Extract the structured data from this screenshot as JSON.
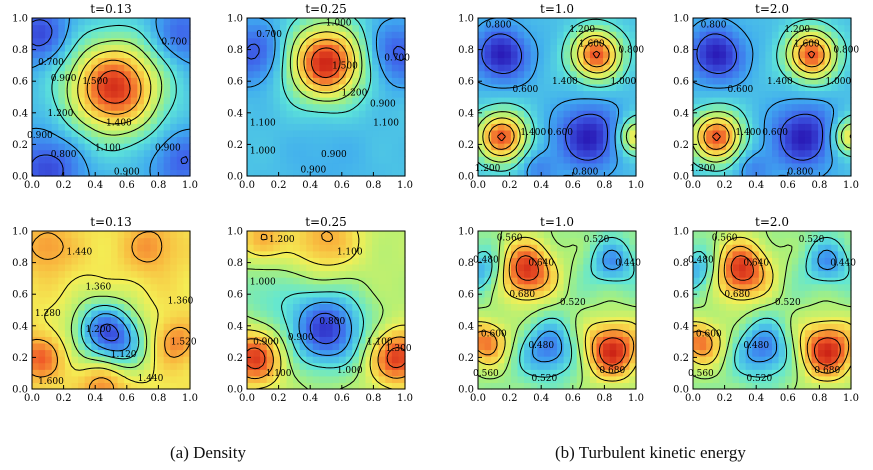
{
  "captions": {
    "a": "(a) Density",
    "b": "(b) Turbulent kinetic energy"
  },
  "colormap": [
    "#2a1cb8",
    "#3f62ea",
    "#3fa9f0",
    "#5ee6d8",
    "#aaf07a",
    "#f4ef55",
    "#f9b23c",
    "#f05a28",
    "#c81e14"
  ],
  "chart_data": [
    {
      "type": "contour",
      "group": "(a) Density",
      "title": "t=0.13",
      "xlim": [
        0,
        1
      ],
      "ylim": [
        0,
        1
      ],
      "xticks": [
        "0.0",
        "0.2",
        "0.4",
        "0.6",
        "0.8",
        "1.0"
      ],
      "yticks": [
        "0.0",
        "0.2",
        "0.4",
        "0.6",
        "0.8",
        "1.0"
      ],
      "vmin": 0.6,
      "vmax": 1.85,
      "bumps": [
        [
          0.52,
          0.56,
          0.85,
          0.2
        ],
        [
          0.05,
          0.9,
          -0.25,
          0.13
        ],
        [
          0.95,
          0.9,
          -0.2,
          0.13
        ],
        [
          0.1,
          0.05,
          -0.25,
          0.15
        ],
        [
          0.95,
          0.1,
          -0.2,
          0.13
        ]
      ],
      "base": 0.95,
      "contour_labels": [
        {
          "text": "0.700",
          "x": 0.12,
          "y": 0.72
        },
        {
          "text": "0.700",
          "x": 0.9,
          "y": 0.85
        },
        {
          "text": "0.900",
          "x": 0.2,
          "y": 0.62
        },
        {
          "text": "1.500",
          "x": 0.4,
          "y": 0.6
        },
        {
          "text": "1.200",
          "x": 0.18,
          "y": 0.4
        },
        {
          "text": "1.400",
          "x": 0.55,
          "y": 0.34
        },
        {
          "text": "1.100",
          "x": 0.48,
          "y": 0.18
        },
        {
          "text": "0.800",
          "x": 0.2,
          "y": 0.14
        },
        {
          "text": "0.900",
          "x": 0.86,
          "y": 0.18
        },
        {
          "text": "0.900",
          "x": 0.05,
          "y": 0.26
        },
        {
          "text": "0.900",
          "x": 0.6,
          "y": 0.03
        }
      ]
    },
    {
      "type": "contour",
      "group": "(a) Density",
      "title": "t=0.25",
      "xlim": [
        0,
        1
      ],
      "ylim": [
        0,
        1
      ],
      "xticks": [
        "0.0",
        "0.2",
        "0.4",
        "0.6",
        "0.8",
        "1.0"
      ],
      "yticks": [
        "0.0",
        "0.2",
        "0.4",
        "0.6",
        "0.8",
        "1.0"
      ],
      "vmin": 0.6,
      "vmax": 1.85,
      "bumps": [
        [
          0.5,
          0.72,
          0.85,
          0.16
        ],
        [
          0.05,
          0.78,
          -0.25,
          0.14
        ],
        [
          0.95,
          0.78,
          -0.25,
          0.14
        ],
        [
          0.5,
          0.1,
          -0.05,
          0.2
        ]
      ],
      "base": 0.98,
      "contour_labels": [
        {
          "text": "0.700",
          "x": 0.14,
          "y": 0.9
        },
        {
          "text": "0.700",
          "x": 0.95,
          "y": 0.75
        },
        {
          "text": "1.000",
          "x": 0.58,
          "y": 0.97
        },
        {
          "text": "1.500",
          "x": 0.62,
          "y": 0.7
        },
        {
          "text": "1.200",
          "x": 0.68,
          "y": 0.53
        },
        {
          "text": "0.900",
          "x": 0.86,
          "y": 0.46
        },
        {
          "text": "1.100",
          "x": 0.1,
          "y": 0.34
        },
        {
          "text": "1.100",
          "x": 0.88,
          "y": 0.34
        },
        {
          "text": "1.000",
          "x": 0.1,
          "y": 0.16
        },
        {
          "text": "0.900",
          "x": 0.55,
          "y": 0.14
        },
        {
          "text": "0.900",
          "x": 0.42,
          "y": 0.04
        }
      ]
    },
    {
      "type": "contour",
      "group": "(a) Density",
      "title": "t=1.0",
      "xlim": [
        0,
        1
      ],
      "ylim": [
        0,
        1
      ],
      "xticks": [
        "0.0",
        "0.2",
        "0.4",
        "0.6",
        "0.8",
        "1.0"
      ],
      "yticks": [
        "0.0",
        "0.2",
        "0.4",
        "0.6",
        "0.8",
        "1.0"
      ],
      "vmin": 0.45,
      "vmax": 1.8,
      "bumps": [
        [
          0.15,
          0.25,
          0.8,
          0.11
        ],
        [
          0.75,
          0.77,
          0.8,
          0.11
        ],
        [
          0.15,
          0.77,
          -0.4,
          0.12
        ],
        [
          0.7,
          0.25,
          -0.4,
          0.14
        ],
        [
          1.0,
          0.25,
          0.5,
          0.08
        ],
        [
          0.38,
          0.05,
          -0.15,
          0.08
        ]
      ],
      "base": 0.85,
      "contour_labels": [
        {
          "text": "0.800",
          "x": 0.13,
          "y": 0.96
        },
        {
          "text": "1.200",
          "x": 0.66,
          "y": 0.93
        },
        {
          "text": "1.600",
          "x": 0.72,
          "y": 0.84
        },
        {
          "text": "0.800",
          "x": 0.97,
          "y": 0.8
        },
        {
          "text": "1.400",
          "x": 0.55,
          "y": 0.6
        },
        {
          "text": "1.000",
          "x": 0.92,
          "y": 0.6
        },
        {
          "text": "0.600",
          "x": 0.3,
          "y": 0.55
        },
        {
          "text": "1.400",
          "x": 0.35,
          "y": 0.28
        },
        {
          "text": "0.600",
          "x": 0.52,
          "y": 0.28
        },
        {
          "text": "1.200",
          "x": 0.06,
          "y": 0.05
        },
        {
          "text": "0.800",
          "x": 0.68,
          "y": 0.03
        }
      ]
    },
    {
      "type": "contour",
      "group": "(a) Density",
      "title": "t=2.0",
      "xlim": [
        0,
        1
      ],
      "ylim": [
        0,
        1
      ],
      "xticks": [
        "0.0",
        "0.2",
        "0.4",
        "0.6",
        "0.8",
        "1.0"
      ],
      "yticks": [
        "0.0",
        "0.2",
        "0.4",
        "0.6",
        "0.8",
        "1.0"
      ],
      "vmin": 0.45,
      "vmax": 1.8,
      "bumps": [
        [
          0.15,
          0.25,
          0.8,
          0.11
        ],
        [
          0.75,
          0.77,
          0.8,
          0.11
        ],
        [
          0.15,
          0.77,
          -0.4,
          0.12
        ],
        [
          0.7,
          0.25,
          -0.4,
          0.14
        ],
        [
          1.0,
          0.25,
          0.5,
          0.08
        ],
        [
          0.38,
          0.05,
          -0.15,
          0.08
        ]
      ],
      "base": 0.85,
      "contour_labels": [
        {
          "text": "0.800",
          "x": 0.13,
          "y": 0.96
        },
        {
          "text": "1.200",
          "x": 0.66,
          "y": 0.93
        },
        {
          "text": "1.600",
          "x": 0.72,
          "y": 0.84
        },
        {
          "text": "0.800",
          "x": 0.97,
          "y": 0.8
        },
        {
          "text": "1.400",
          "x": 0.55,
          "y": 0.6
        },
        {
          "text": "1.000",
          "x": 0.92,
          "y": 0.6
        },
        {
          "text": "0.600",
          "x": 0.3,
          "y": 0.55
        },
        {
          "text": "1.400",
          "x": 0.35,
          "y": 0.28
        },
        {
          "text": "0.600",
          "x": 0.52,
          "y": 0.28
        },
        {
          "text": "1.200",
          "x": 0.06,
          "y": 0.05
        },
        {
          "text": "0.800",
          "x": 0.68,
          "y": 0.03
        }
      ]
    },
    {
      "type": "contour",
      "group": "(b) Turbulent kinetic energy",
      "title": "t=0.13",
      "xlim": [
        0,
        1
      ],
      "ylim": [
        0,
        1
      ],
      "xticks": [
        "0.0",
        "0.2",
        "0.4",
        "0.6",
        "0.8",
        "1.0"
      ],
      "yticks": [
        "0.0",
        "0.2",
        "0.4",
        "0.6",
        "0.8",
        "1.0"
      ],
      "vmin": 0.95,
      "vmax": 1.62,
      "bumps": [
        [
          0.45,
          0.38,
          -0.3,
          0.14
        ],
        [
          0.6,
          0.28,
          -0.15,
          0.12
        ],
        [
          0.05,
          0.2,
          0.15,
          0.1
        ],
        [
          0.9,
          0.3,
          0.12,
          0.1
        ],
        [
          0.1,
          0.9,
          0.1,
          0.12
        ],
        [
          0.75,
          0.9,
          0.1,
          0.12
        ],
        [
          0.45,
          0.03,
          0.12,
          0.1
        ]
      ],
      "base": 1.38,
      "contour_labels": [
        {
          "text": "1.440",
          "x": 0.3,
          "y": 0.87
        },
        {
          "text": "1.360",
          "x": 0.42,
          "y": 0.65
        },
        {
          "text": "1.280",
          "x": 0.1,
          "y": 0.48
        },
        {
          "text": "1.360",
          "x": 0.94,
          "y": 0.56
        },
        {
          "text": "1.200",
          "x": 0.42,
          "y": 0.38
        },
        {
          "text": "1.120",
          "x": 0.58,
          "y": 0.22
        },
        {
          "text": "1.520",
          "x": 0.96,
          "y": 0.3
        },
        {
          "text": "1.440",
          "x": 0.75,
          "y": 0.07
        },
        {
          "text": "1.600",
          "x": 0.12,
          "y": 0.05
        }
      ]
    },
    {
      "type": "contour",
      "group": "(b) Turbulent kinetic energy",
      "title": "t=0.25",
      "xlim": [
        0,
        1
      ],
      "ylim": [
        0,
        1
      ],
      "xticks": [
        "0.0",
        "0.2",
        "0.4",
        "0.6",
        "0.8",
        "1.0"
      ],
      "yticks": [
        "0.0",
        "0.2",
        "0.4",
        "0.6",
        "0.8",
        "1.0"
      ],
      "vmin": 0.6,
      "vmax": 1.45,
      "bumps": [
        [
          0.5,
          0.38,
          -0.4,
          0.17
        ],
        [
          0.1,
          0.6,
          -0.1,
          0.15
        ],
        [
          0.05,
          0.2,
          0.35,
          0.12
        ],
        [
          0.95,
          0.2,
          0.35,
          0.12
        ],
        [
          0.5,
          0.95,
          0.2,
          0.15
        ],
        [
          0.1,
          0.95,
          0.2,
          0.1
        ]
      ],
      "base": 1.05,
      "contour_labels": [
        {
          "text": "1.200",
          "x": 0.22,
          "y": 0.95
        },
        {
          "text": "1.100",
          "x": 0.65,
          "y": 0.87
        },
        {
          "text": "1.000",
          "x": 0.1,
          "y": 0.68
        },
        {
          "text": "0.800",
          "x": 0.54,
          "y": 0.43
        },
        {
          "text": "0.900",
          "x": 0.34,
          "y": 0.33
        },
        {
          "text": "1.100",
          "x": 0.84,
          "y": 0.3
        },
        {
          "text": "1.000",
          "x": 0.65,
          "y": 0.12
        },
        {
          "text": "1.100",
          "x": 0.2,
          "y": 0.1
        },
        {
          "text": "0.900",
          "x": 0.12,
          "y": 0.3
        },
        {
          "text": "1.300",
          "x": 0.96,
          "y": 0.26
        }
      ]
    },
    {
      "type": "contour",
      "group": "(b) Turbulent kinetic energy",
      "title": "t=1.0",
      "xlim": [
        0,
        1
      ],
      "ylim": [
        0,
        1
      ],
      "xticks": [
        "0.0",
        "0.2",
        "0.4",
        "0.6",
        "0.8",
        "1.0"
      ],
      "yticks": [
        "0.0",
        "0.2",
        "0.4",
        "0.6",
        "0.8",
        "1.0"
      ],
      "vmin": 0.42,
      "vmax": 0.74,
      "bumps": [
        [
          0.3,
          0.75,
          0.16,
          0.13
        ],
        [
          0.85,
          0.25,
          0.16,
          0.13
        ],
        [
          0.05,
          0.3,
          0.12,
          0.1
        ],
        [
          0.45,
          0.25,
          -0.1,
          0.12
        ],
        [
          0.05,
          0.75,
          -0.08,
          0.1
        ],
        [
          0.85,
          0.8,
          -0.08,
          0.1
        ]
      ],
      "base": 0.57,
      "contour_labels": [
        {
          "text": "0.560",
          "x": 0.2,
          "y": 0.96
        },
        {
          "text": "0.520",
          "x": 0.75,
          "y": 0.95
        },
        {
          "text": "0.480",
          "x": 0.05,
          "y": 0.82
        },
        {
          "text": "0.640",
          "x": 0.4,
          "y": 0.8
        },
        {
          "text": "0.440",
          "x": 0.95,
          "y": 0.8
        },
        {
          "text": "0.680",
          "x": 0.28,
          "y": 0.6
        },
        {
          "text": "0.520",
          "x": 0.6,
          "y": 0.55
        },
        {
          "text": "0.600",
          "x": 0.1,
          "y": 0.35
        },
        {
          "text": "0.480",
          "x": 0.4,
          "y": 0.28
        },
        {
          "text": "0.680",
          "x": 0.85,
          "y": 0.12
        },
        {
          "text": "0.560",
          "x": 0.05,
          "y": 0.1
        },
        {
          "text": "0.520",
          "x": 0.42,
          "y": 0.07
        }
      ]
    },
    {
      "type": "contour",
      "group": "(b) Turbulent kinetic energy",
      "title": "t=2.0",
      "xlim": [
        0,
        1
      ],
      "ylim": [
        0,
        1
      ],
      "xticks": [
        "0.0",
        "0.2",
        "0.4",
        "0.6",
        "0.8",
        "1.0"
      ],
      "yticks": [
        "0.0",
        "0.2",
        "0.4",
        "0.6",
        "0.8",
        "1.0"
      ],
      "vmin": 0.42,
      "vmax": 0.74,
      "bumps": [
        [
          0.3,
          0.75,
          0.16,
          0.13
        ],
        [
          0.85,
          0.25,
          0.16,
          0.13
        ],
        [
          0.05,
          0.3,
          0.12,
          0.1
        ],
        [
          0.45,
          0.25,
          -0.1,
          0.12
        ],
        [
          0.05,
          0.75,
          -0.08,
          0.1
        ],
        [
          0.85,
          0.8,
          -0.08,
          0.1
        ]
      ],
      "base": 0.57,
      "contour_labels": [
        {
          "text": "0.560",
          "x": 0.2,
          "y": 0.96
        },
        {
          "text": "0.520",
          "x": 0.75,
          "y": 0.95
        },
        {
          "text": "0.480",
          "x": 0.05,
          "y": 0.82
        },
        {
          "text": "0.640",
          "x": 0.4,
          "y": 0.8
        },
        {
          "text": "0.440",
          "x": 0.95,
          "y": 0.8
        },
        {
          "text": "0.680",
          "x": 0.28,
          "y": 0.6
        },
        {
          "text": "0.520",
          "x": 0.6,
          "y": 0.55
        },
        {
          "text": "0.600",
          "x": 0.1,
          "y": 0.35
        },
        {
          "text": "0.480",
          "x": 0.4,
          "y": 0.28
        },
        {
          "text": "0.680",
          "x": 0.85,
          "y": 0.12
        },
        {
          "text": "0.560",
          "x": 0.05,
          "y": 0.1
        },
        {
          "text": "0.520",
          "x": 0.42,
          "y": 0.07
        }
      ]
    }
  ]
}
